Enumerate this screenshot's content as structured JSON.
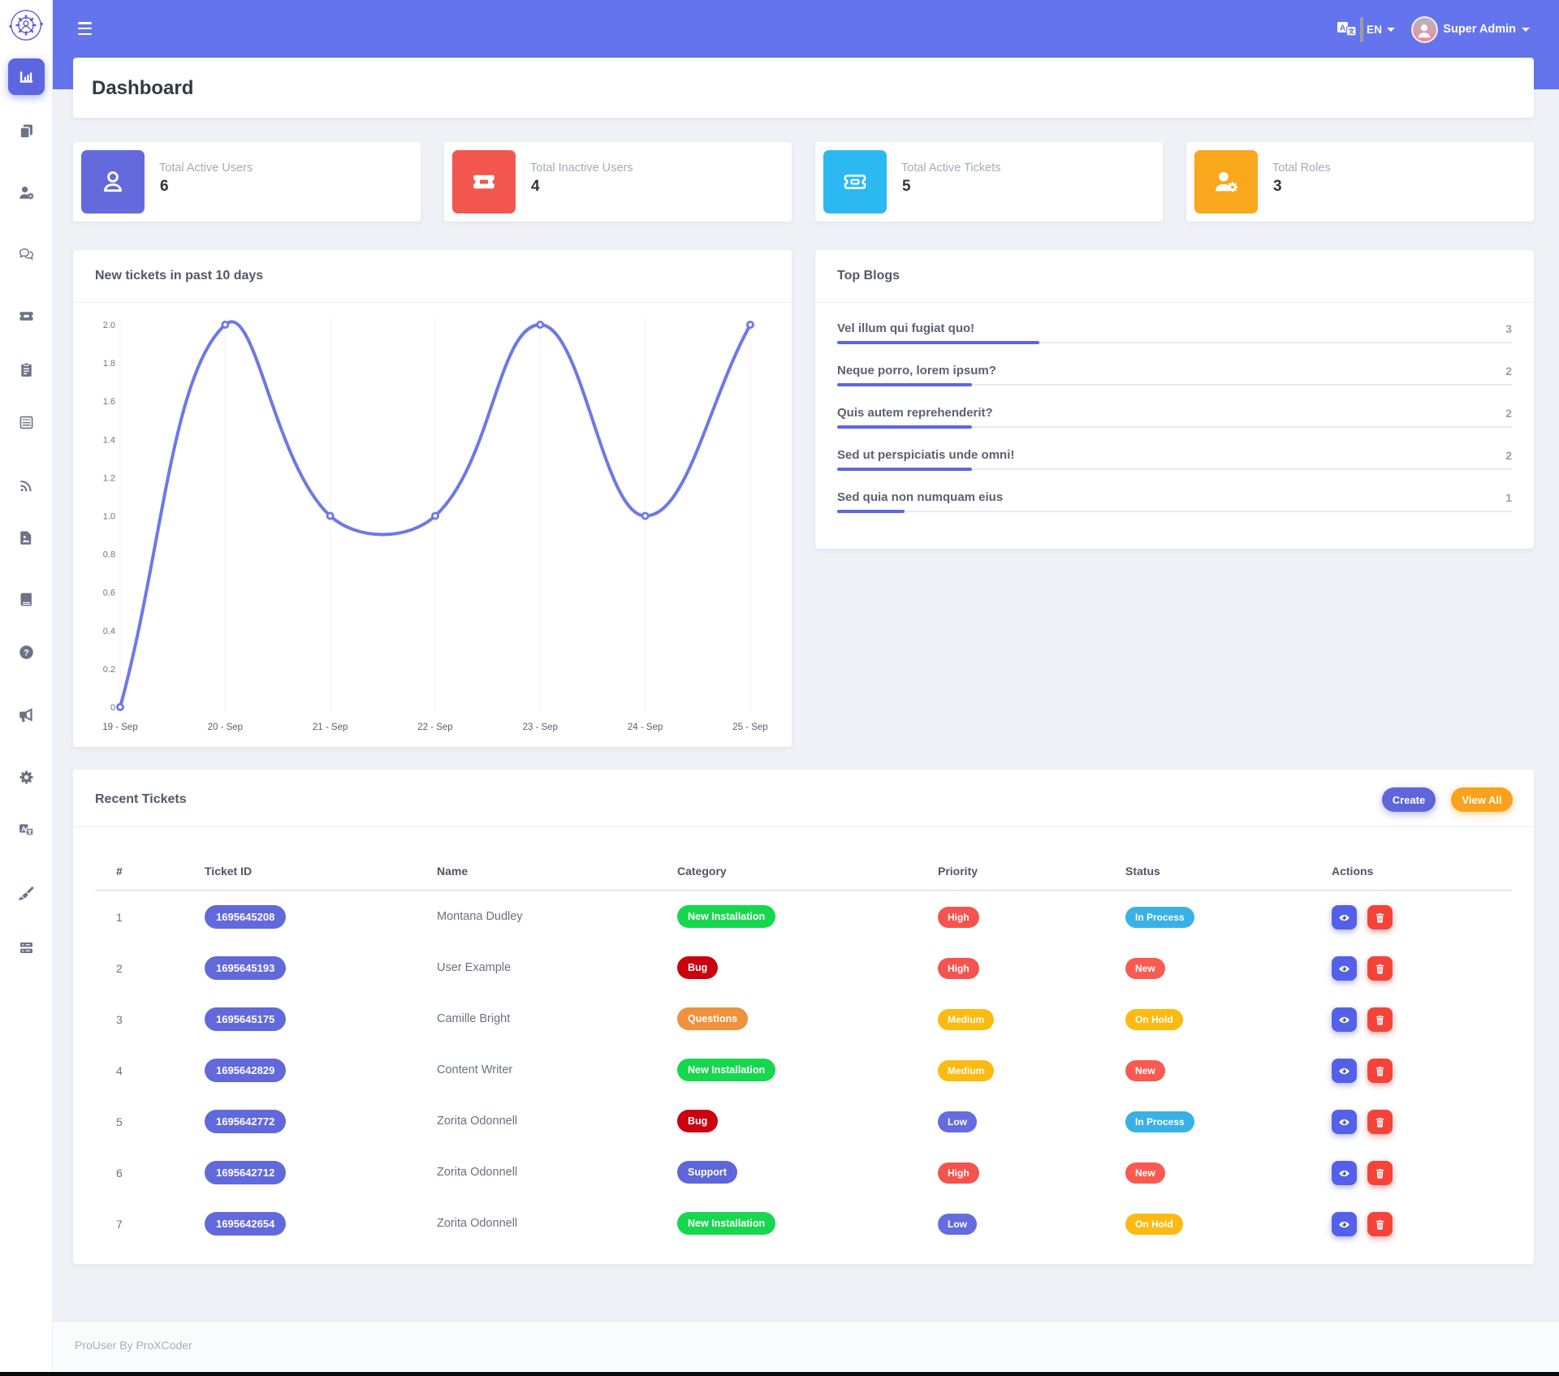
{
  "page": {
    "title": "Dashboard"
  },
  "topbar": {
    "language": "EN",
    "user_name": "Super Admin",
    "icons": [
      "translate-icon",
      "avatar",
      "chevron-down-icon"
    ]
  },
  "sidebar": {
    "logo_icon": "gear-orbit-logo",
    "items": [
      {
        "id": "dashboard",
        "icon": "chart-bar-icon",
        "active": true
      },
      {
        "id": "pages",
        "icon": "copy-icon",
        "active": false
      },
      {
        "id": "users",
        "icon": "user-gear-icon",
        "active": false
      },
      {
        "id": "chat",
        "icon": "chat-icon",
        "active": false
      },
      {
        "id": "tickets",
        "icon": "ticket-icon",
        "active": false
      },
      {
        "id": "tasks",
        "icon": "clipboard-icon",
        "active": false
      },
      {
        "id": "notes",
        "icon": "notebook-icon",
        "active": false
      },
      {
        "id": "feed",
        "icon": "rss-icon",
        "active": false
      },
      {
        "id": "media",
        "icon": "file-image-icon",
        "active": false
      },
      {
        "id": "docs",
        "icon": "book-icon",
        "active": false
      },
      {
        "id": "faq",
        "icon": "question-icon",
        "active": false
      },
      {
        "id": "announcements",
        "icon": "megaphone-icon",
        "active": false
      },
      {
        "id": "settings",
        "icon": "gear-icon",
        "active": false
      },
      {
        "id": "translations",
        "icon": "translate-icon",
        "active": false
      },
      {
        "id": "cleanup",
        "icon": "broom-icon",
        "active": false
      },
      {
        "id": "system",
        "icon": "server-icon",
        "active": false
      }
    ]
  },
  "stats": {
    "cards": [
      {
        "label": "Total Active Users",
        "value": "6",
        "icon": "user-icon",
        "color": "#646adb"
      },
      {
        "label": "Total Inactive Users",
        "value": "4",
        "icon": "ticket-solid-icon",
        "color": "#f2564e"
      },
      {
        "label": "Total Active Tickets",
        "value": "5",
        "icon": "ticket-line-icon",
        "color": "#2cb8f0"
      },
      {
        "label": "Total Roles",
        "value": "3",
        "icon": "user-gear-icon",
        "color": "#f9a71c"
      }
    ]
  },
  "chart_card": {
    "title": "New tickets in past 10 days"
  },
  "chart_data": {
    "type": "line",
    "title": "New tickets in past 10 days",
    "x": [
      "19 - Sep",
      "20 - Sep",
      "21 - Sep",
      "22 - Sep",
      "23 - Sep",
      "24 - Sep",
      "25 - Sep"
    ],
    "values": [
      0,
      2,
      1,
      1,
      2,
      1,
      2
    ],
    "ylim": [
      0,
      2
    ],
    "ytick_step": 0.2,
    "line_color": "#6d78e8",
    "grid": "vertical-only",
    "legend": "none",
    "smooth": true
  },
  "blogs": {
    "title": "Top Blogs",
    "items": [
      {
        "title": "Vel illum qui fugiat quo!",
        "count": "3",
        "percent": 30
      },
      {
        "title": "Neque porro, lorem ipsum?",
        "count": "2",
        "percent": 20
      },
      {
        "title": "Quis autem reprehenderit?",
        "count": "2",
        "percent": 20
      },
      {
        "title": "Sed ut perspiciatis unde omni!",
        "count": "2",
        "percent": 20
      },
      {
        "title": "Sed quia non numquam eius",
        "count": "1",
        "percent": 10
      }
    ]
  },
  "tickets": {
    "title": "Recent Tickets",
    "create_label": "Create",
    "view_all_label": "View All",
    "headers": [
      "#",
      "Ticket ID",
      "Name",
      "Category",
      "Priority",
      "Status",
      "Actions"
    ],
    "rows": [
      {
        "num": "1",
        "ticket_id": "1695645208",
        "name": "Montana Dudley",
        "category": "New Installation",
        "priority": "High",
        "status": "In Process"
      },
      {
        "num": "2",
        "ticket_id": "1695645193",
        "name": "User Example",
        "category": "Bug",
        "priority": "High",
        "status": "New"
      },
      {
        "num": "3",
        "ticket_id": "1695645175",
        "name": "Camille Bright",
        "category": "Questions",
        "priority": "Medium",
        "status": "On Hold"
      },
      {
        "num": "4",
        "ticket_id": "1695642829",
        "name": "Content Writer",
        "category": "New Installation",
        "priority": "Medium",
        "status": "New"
      },
      {
        "num": "5",
        "ticket_id": "1695642772",
        "name": "Zorita Odonnell",
        "category": "Bug",
        "priority": "Low",
        "status": "In Process"
      },
      {
        "num": "6",
        "ticket_id": "1695642712",
        "name": "Zorita Odonnell",
        "category": "Support",
        "priority": "High",
        "status": "New"
      },
      {
        "num": "7",
        "ticket_id": "1695642654",
        "name": "Zorita Odonnell",
        "category": "New Installation",
        "priority": "Low",
        "status": "On Hold"
      }
    ],
    "badge_colors": {
      "ticket_id": "#6269db",
      "New Installation": "#17d74e",
      "Bug": "#cb0110",
      "Questions": "#ef913d",
      "Support": "#5f66d9",
      "High": "#f4534e",
      "Medium": "#fcba12",
      "Low": "#656cdf",
      "In Process": "#3ab1e6",
      "New": "#fa5a50",
      "On Hold": "#fcba12"
    }
  },
  "footer": {
    "text": "ProUser By ProXCoder"
  }
}
